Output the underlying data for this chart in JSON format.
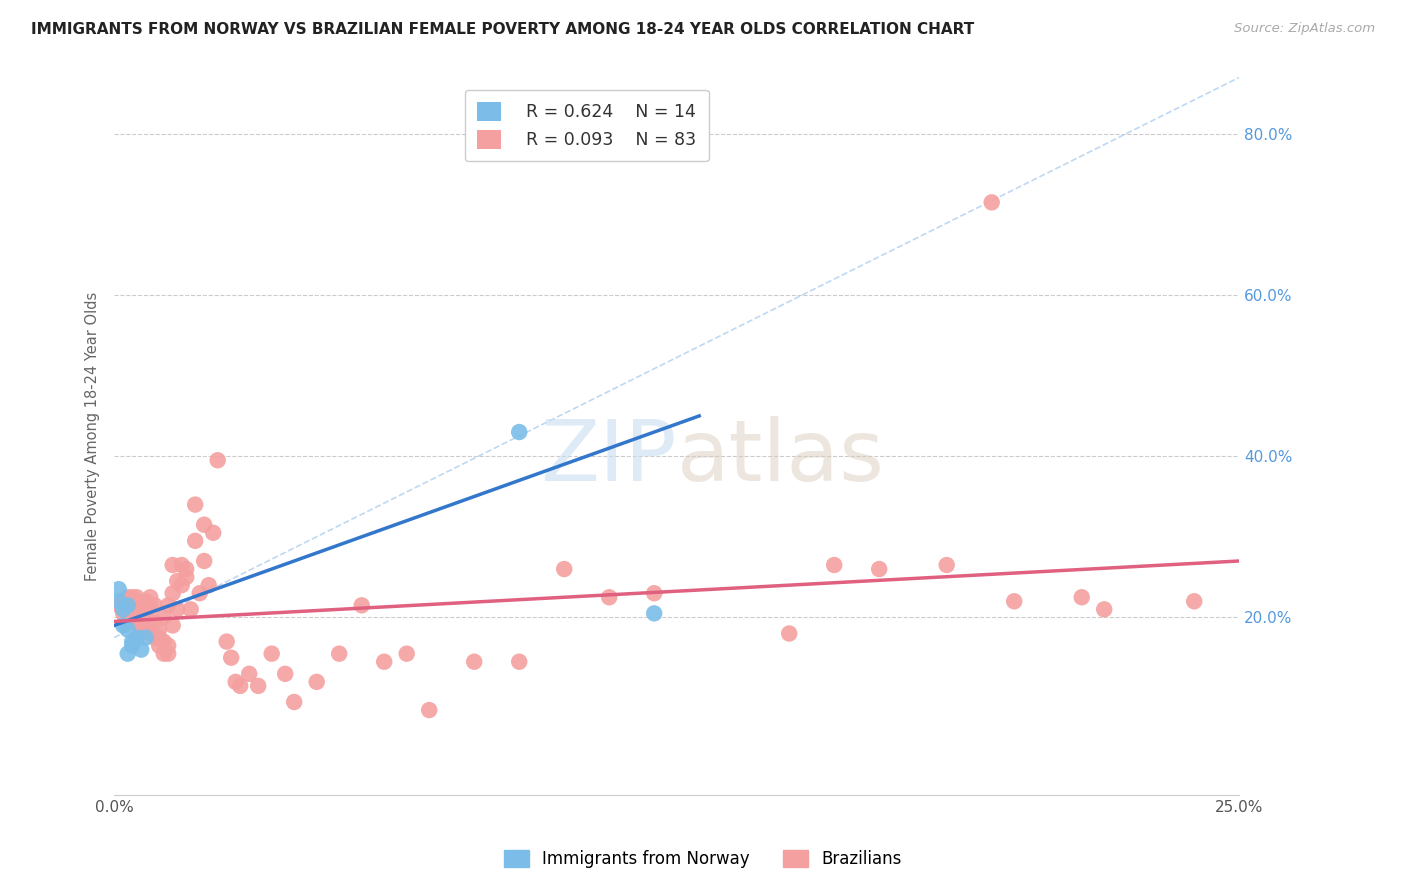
{
  "title": "IMMIGRANTS FROM NORWAY VS BRAZILIAN FEMALE POVERTY AMONG 18-24 YEAR OLDS CORRELATION CHART",
  "source_text": "Source: ZipAtlas.com",
  "ylabel": "Female Poverty Among 18-24 Year Olds",
  "xlim": [
    0.0,
    0.25
  ],
  "ylim": [
    -0.02,
    0.87
  ],
  "yticks_right": [
    0.2,
    0.4,
    0.6,
    0.8
  ],
  "xticks": [
    0.0,
    0.25
  ],
  "grid_yticks": [
    0.2,
    0.4,
    0.6,
    0.8
  ],
  "legend_r1": "R = 0.624",
  "legend_n1": "N = 14",
  "legend_r2": "R = 0.093",
  "legend_n2": "N = 83",
  "norway_color": "#7bbde8",
  "brazil_color": "#f4a0a0",
  "norway_line_color": "#3377cc",
  "brazil_line_color": "#e06080",
  "watermark_zip": "ZIP",
  "watermark_atlas": "atlas",
  "norway_scatter_x": [
    0.001,
    0.001,
    0.002,
    0.002,
    0.003,
    0.003,
    0.003,
    0.004,
    0.004,
    0.005,
    0.006,
    0.007,
    0.09,
    0.12
  ],
  "norway_scatter_y": [
    0.22,
    0.235,
    0.21,
    0.19,
    0.185,
    0.155,
    0.215,
    0.165,
    0.17,
    0.175,
    0.16,
    0.175,
    0.43,
    0.205
  ],
  "brazil_scatter_x": [
    0.001,
    0.002,
    0.002,
    0.003,
    0.003,
    0.003,
    0.004,
    0.004,
    0.004,
    0.005,
    0.005,
    0.005,
    0.005,
    0.006,
    0.006,
    0.006,
    0.007,
    0.007,
    0.007,
    0.007,
    0.008,
    0.008,
    0.008,
    0.008,
    0.009,
    0.009,
    0.009,
    0.01,
    0.01,
    0.01,
    0.011,
    0.011,
    0.011,
    0.012,
    0.012,
    0.012,
    0.013,
    0.013,
    0.013,
    0.014,
    0.014,
    0.015,
    0.015,
    0.016,
    0.016,
    0.017,
    0.018,
    0.018,
    0.019,
    0.02,
    0.02,
    0.021,
    0.022,
    0.023,
    0.025,
    0.026,
    0.027,
    0.028,
    0.03,
    0.032,
    0.035,
    0.038,
    0.04,
    0.045,
    0.05,
    0.055,
    0.06,
    0.065,
    0.07,
    0.08,
    0.09,
    0.1,
    0.11,
    0.12,
    0.15,
    0.16,
    0.17,
    0.185,
    0.195,
    0.2,
    0.215,
    0.22,
    0.24
  ],
  "brazil_scatter_y": [
    0.215,
    0.205,
    0.22,
    0.195,
    0.21,
    0.225,
    0.2,
    0.21,
    0.225,
    0.2,
    0.215,
    0.225,
    0.195,
    0.205,
    0.185,
    0.215,
    0.195,
    0.21,
    0.19,
    0.22,
    0.195,
    0.18,
    0.215,
    0.225,
    0.175,
    0.195,
    0.215,
    0.165,
    0.175,
    0.185,
    0.155,
    0.17,
    0.2,
    0.155,
    0.165,
    0.215,
    0.19,
    0.23,
    0.265,
    0.21,
    0.245,
    0.24,
    0.265,
    0.25,
    0.26,
    0.21,
    0.295,
    0.34,
    0.23,
    0.27,
    0.315,
    0.24,
    0.305,
    0.395,
    0.17,
    0.15,
    0.12,
    0.115,
    0.13,
    0.115,
    0.155,
    0.13,
    0.095,
    0.12,
    0.155,
    0.215,
    0.145,
    0.155,
    0.085,
    0.145,
    0.145,
    0.26,
    0.225,
    0.23,
    0.18,
    0.265,
    0.26,
    0.265,
    0.715,
    0.22,
    0.225,
    0.21,
    0.22
  ],
  "norway_line_x": [
    0.0,
    0.13
  ],
  "norway_line_y": [
    0.19,
    0.45
  ],
  "brazil_line_x": [
    0.0,
    0.25
  ],
  "brazil_line_y": [
    0.195,
    0.27
  ],
  "dash_line_x": [
    0.0,
    0.25
  ],
  "dash_line_y": [
    0.175,
    0.87
  ]
}
